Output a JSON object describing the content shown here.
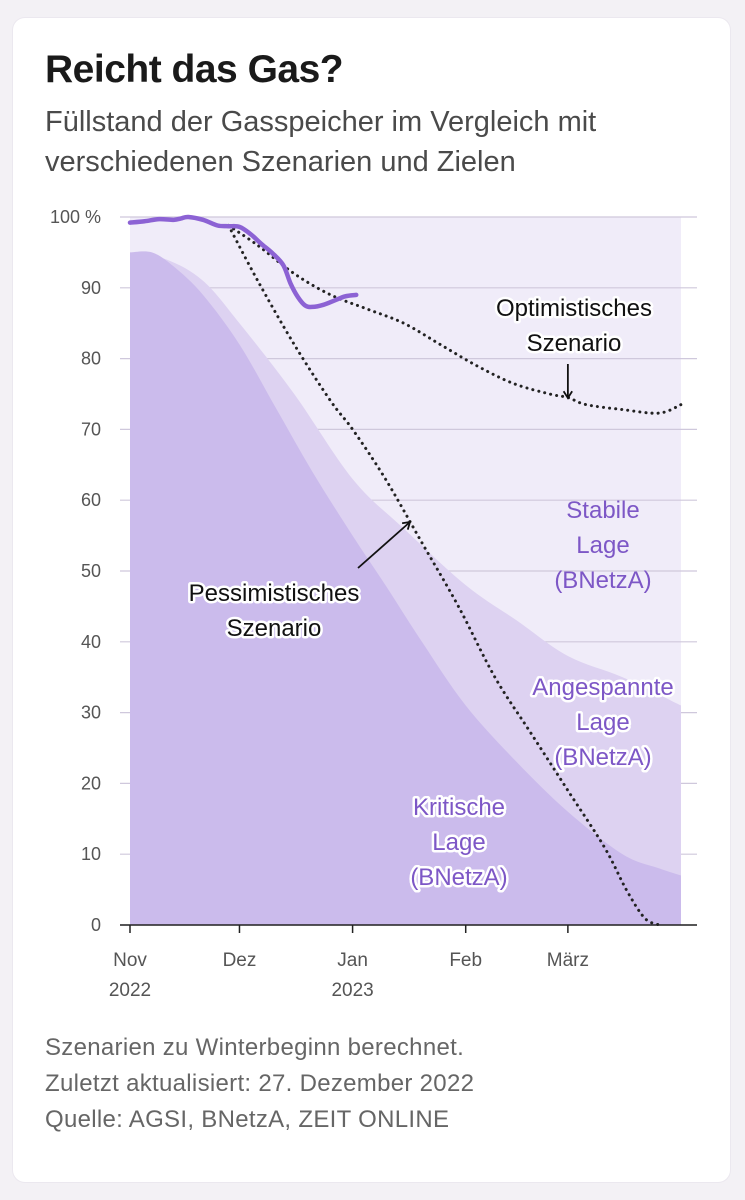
{
  "title": "Reicht das Gas?",
  "subtitle": "Füllstand der Gasspeicher im Vergleich mit verschiedenen Szenarien und Zielen",
  "footer": {
    "line1": "Szenarien zu Winterbeginn berechnet.",
    "line2": "Zuletzt aktualisiert: 27. Dezember 2022",
    "line3": "Quelle: AGSI, BNetzA, ZEIT ONLINE"
  },
  "colors": {
    "stable_band": "#f0ecf9",
    "tense_band": "#ddd2f1",
    "critical_band": "#cbbbec",
    "actual_line": "#8c62d4",
    "label_purple": "#7d57c6",
    "scenario_line": "#222222",
    "grid": "#cfc8dc"
  },
  "chart_data": {
    "type": "area",
    "x_unit": "days since 1 Nov 2022",
    "y_unit": "%",
    "xlim": [
      0,
      151
    ],
    "ylim": [
      0,
      100
    ],
    "y_ticks": [
      0,
      10,
      20,
      30,
      40,
      50,
      60,
      70,
      80,
      90,
      100
    ],
    "y_tick_labels": [
      "0",
      "10",
      "20",
      "30",
      "40",
      "50",
      "60",
      "70",
      "80",
      "90",
      "100 %"
    ],
    "x_ticks": [
      {
        "x": 0,
        "label": "Nov",
        "sub": "2022"
      },
      {
        "x": 30,
        "label": "Dez",
        "sub": ""
      },
      {
        "x": 61,
        "label": "Jan",
        "sub": "2023"
      },
      {
        "x": 92,
        "label": "Feb",
        "sub": ""
      },
      {
        "x": 120,
        "label": "März",
        "sub": ""
      }
    ],
    "bands": [
      {
        "name": "Stabile Lage (BNetzA)",
        "label_lines": [
          "Stabile",
          "Lage",
          "(BNetzA)"
        ],
        "x": [
          0,
          151
        ],
        "upper": [
          100,
          100
        ]
      },
      {
        "name": "Angespannte Lage (BNetzA)",
        "label_lines": [
          "Angespannte",
          "Lage",
          "(BNetzA)"
        ],
        "x": [
          0,
          10,
          20,
          30,
          45,
          61,
          75,
          92,
          106,
          120,
          135,
          151
        ],
        "upper": [
          95,
          94,
          91,
          85,
          75,
          63,
          56,
          48,
          43,
          38,
          35,
          31
        ]
      },
      {
        "name": "Kritische Lage (BNetzA)",
        "label_lines": [
          "Kritische",
          "Lage",
          "(BNetzA)"
        ],
        "x": [
          0,
          6,
          12,
          20,
          30,
          40,
          50,
          61,
          70,
          80,
          92,
          106,
          120,
          135,
          145,
          151
        ],
        "upper": [
          95,
          95,
          93,
          89,
          82,
          73,
          64,
          55,
          48,
          40,
          31,
          23,
          16,
          10,
          8,
          7
        ]
      }
    ],
    "series": [
      {
        "name": "Füllstand",
        "style": "solid",
        "x": [
          0,
          4,
          8,
          12,
          14,
          16,
          20,
          24,
          27,
          30,
          33,
          36,
          39,
          42,
          44,
          46,
          48,
          50,
          53,
          56,
          59,
          62
        ],
        "values": [
          99.2,
          99.4,
          99.7,
          99.6,
          99.8,
          100.0,
          99.6,
          98.8,
          98.7,
          98.6,
          97.6,
          96.2,
          94.9,
          93.2,
          90.6,
          88.7,
          87.5,
          87.3,
          87.6,
          88.2,
          88.8,
          89.0
        ]
      },
      {
        "name": "Optimistisches Szenario",
        "label_lines": [
          "Optimistisches",
          "Szenario"
        ],
        "style": "dotted",
        "x": [
          27,
          35,
          45,
          55,
          65,
          75,
          85,
          95,
          105,
          115,
          120,
          125,
          135,
          145,
          151
        ],
        "values": [
          98.8,
          96,
          92,
          89,
          87,
          85,
          82,
          79,
          76.5,
          75,
          74.5,
          73.5,
          72.8,
          72.3,
          73.5
        ]
      },
      {
        "name": "Pessimistisches Szenario",
        "label_lines": [
          "Pessimistisches",
          "Szenario"
        ],
        "style": "dotted",
        "x": [
          27,
          35,
          45,
          55,
          61,
          70,
          80,
          90,
          100,
          110,
          120,
          130,
          136,
          141,
          145
        ],
        "values": [
          98.8,
          91,
          82,
          74,
          70,
          63,
          54,
          45,
          35,
          27,
          19,
          11,
          5,
          1,
          0
        ]
      }
    ]
  }
}
